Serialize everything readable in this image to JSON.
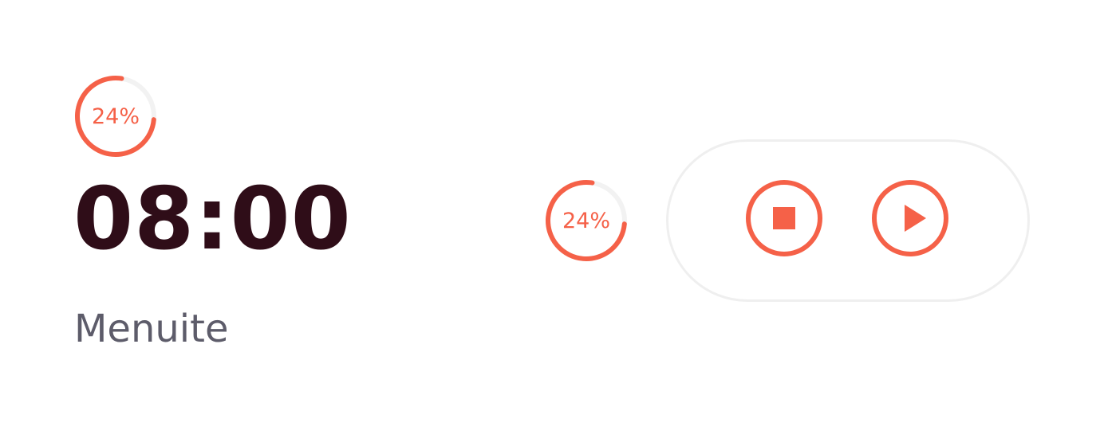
{
  "progress": {
    "percent": 24,
    "label": "24%"
  },
  "timer": {
    "time": "08:00",
    "unit_label": "Menuite"
  },
  "controls": {
    "stop_icon": "stop-square-icon",
    "play_icon": "play-triangle-icon"
  },
  "colors": {
    "accent": "#f56148",
    "track": "#f2f2f2",
    "time_text": "#2f0d18",
    "unit_text": "#5d5c6a",
    "pill_border": "#efefef"
  }
}
